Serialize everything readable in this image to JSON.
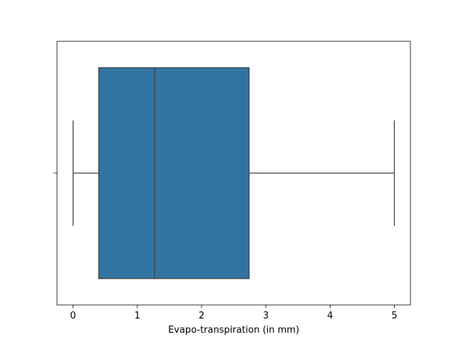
{
  "chart_data": {
    "type": "box",
    "orientation": "horizontal",
    "title": "",
    "xlabel": "Evapo-transpiration (in mm)",
    "ylabel": "",
    "xlim": [
      -0.25,
      5.25
    ],
    "xticks": [
      0,
      1,
      2,
      3,
      4,
      5
    ],
    "xtick_labels": [
      "0",
      "1",
      "2",
      "3",
      "4",
      "5"
    ],
    "grid": false,
    "box": {
      "whisker_low": 0.0,
      "q1": 0.4,
      "median": 1.27,
      "q3": 2.74,
      "whisker_high": 5.0
    },
    "colors": {
      "box_fill": "#3274a1",
      "line": "#3d3d3d"
    }
  }
}
